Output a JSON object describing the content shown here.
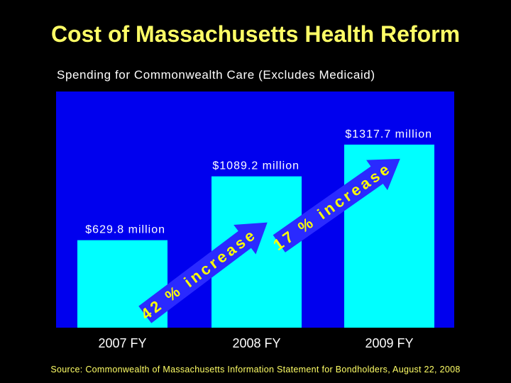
{
  "chart_data": {
    "type": "bar",
    "title": "Cost of Massachusetts Health Reform",
    "subtitle": "Spending for Commonwealth Care (Excludes Medicaid)",
    "categories": [
      "2007 FY",
      "2008 FY",
      "2009 FY"
    ],
    "values": [
      629.8,
      1089.2,
      1317.7
    ],
    "data_labels": [
      "$629.8 million",
      "$1089.2 million",
      "$1317.7 million"
    ],
    "unit": "million",
    "ylim": [
      0,
      1700
    ],
    "xlabel": "",
    "ylabel": "",
    "grid": false,
    "annotations": [
      {
        "text": "42 % increase",
        "from_category": "2007 FY",
        "to_category": "2008 FY"
      },
      {
        "text": "17 % increase",
        "from_category": "2008 FY",
        "to_category": "2009 FY"
      }
    ],
    "colors": {
      "plot_background": "#0000ee",
      "bar": "#00ffff",
      "arrow": "#2a2aff",
      "annotation_text": "#ffff00",
      "data_label_text": "#ffffff",
      "axis_label_text": "#ffffff"
    }
  },
  "source": "Source: Commonwealth of Massachusetts Information Statement for Bondholders, August 22, 2008"
}
